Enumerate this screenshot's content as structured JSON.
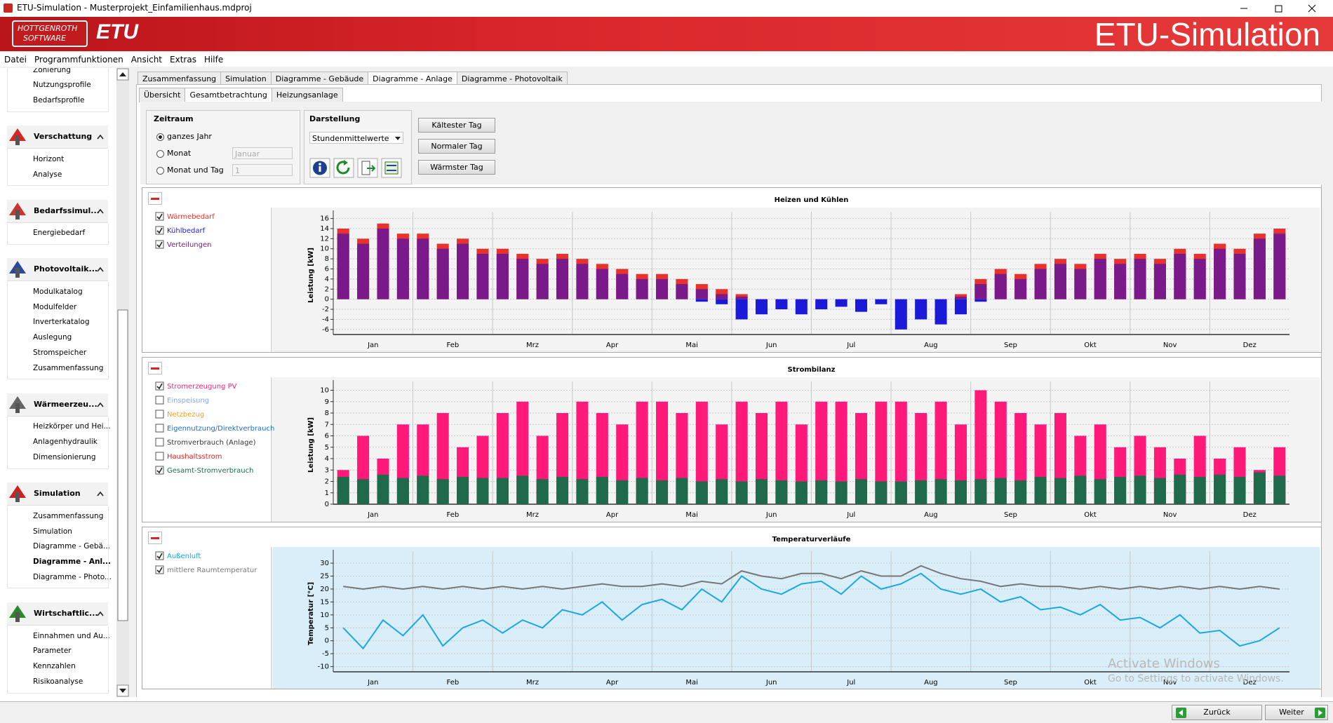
{
  "window": {
    "title": "ETU-Simulation - Musterprojekt_Einfamilienhaus.mdproj"
  },
  "banner": {
    "logo_line1": "HOTTGENROTH",
    "logo_line2": "SOFTWARE",
    "logo_brand": "ETU",
    "app_title": "ETU-Simulation"
  },
  "menu": [
    "Datei",
    "Programmfunktionen",
    "Ansicht",
    "Extras",
    "Hilfe"
  ],
  "sidebar": {
    "sections": [
      {
        "items": [
          "Zonierung",
          "Nutzungsprofile",
          "Bedarfsprofile"
        ]
      },
      {
        "title": "Verschattung",
        "items": [
          "Horizont",
          "Analyse"
        ]
      },
      {
        "title": "Bedarfssimul...",
        "items": [
          "Energiebedarf"
        ]
      },
      {
        "title": "Photovoltaik...",
        "items": [
          "Modulkatalog",
          "Modulfelder",
          "Inverterkatalog",
          "Auslegung",
          "Stromspeicher",
          "Zusammenfassung"
        ]
      },
      {
        "title": "Wärmeerzeu...",
        "items": [
          "Heizkörper und Hei...",
          "Anlagenhydraulik",
          "Dimensionierung"
        ]
      },
      {
        "title": "Simulation",
        "items": [
          "Zusammenfassung",
          "Simulation",
          "Diagramme - Gebä...",
          "Diagramme - Anl...",
          "Diagramme - Photo..."
        ],
        "selected": 3
      },
      {
        "title": "Wirtschaftlic...",
        "items": [
          "Einnahmen und Au...",
          "Parameter",
          "Kennzahlen",
          "Risikoanalyse"
        ]
      }
    ]
  },
  "tabs": {
    "items": [
      "Zusammenfassung",
      "Simulation",
      "Diagramme - Gebäude",
      "Diagramme - Anlage",
      "Diagramme - Photovoltaik"
    ],
    "active": 3
  },
  "subtabs": {
    "items": [
      "Übersicht",
      "Gesamtbetrachtung",
      "Heizungsanlage"
    ],
    "active": 1
  },
  "controls": {
    "zeitraum": {
      "title": "Zeitraum",
      "options": [
        "ganzes Jahr",
        "Monat",
        "Monat und Tag"
      ],
      "selected": 0,
      "month": "Januar",
      "day": 1
    },
    "darstellung": {
      "title": "Darstellung",
      "select": "Stundenmittelwerte"
    },
    "day_buttons": [
      "Kältester Tag",
      "Normaler Tag",
      "Wärmster Tag"
    ]
  },
  "chart_data": [
    {
      "type": "bar",
      "title": "Heizen und Kühlen",
      "y_label": "Leistung [kW]",
      "background": "#f3f3f3",
      "categories": [
        "Jan",
        "Feb",
        "Mrz",
        "Apr",
        "Mai",
        "Jun",
        "Jul",
        "Aug",
        "Sep",
        "Okt",
        "Nov",
        "Dez"
      ],
      "ylim": [
        -7,
        16.5
      ],
      "yticks": [
        -6,
        -4,
        -2,
        0,
        2,
        4,
        6,
        8,
        10,
        12,
        14,
        16
      ],
      "grid": true,
      "series": [
        {
          "name": "Wärmebedarf",
          "color": "#e8322b",
          "checked": true,
          "values": [
            [
              14,
              12,
              15,
              13
            ],
            [
              13,
              11,
              12,
              10
            ],
            [
              10,
              9,
              8,
              9
            ],
            [
              8,
              7,
              6,
              5
            ],
            [
              5,
              4,
              3,
              2
            ],
            [
              1,
              0,
              0,
              0
            ],
            [
              0,
              0,
              0,
              0
            ],
            [
              0,
              0,
              0,
              1
            ],
            [
              4,
              6,
              5,
              7
            ],
            [
              8,
              7,
              9,
              8
            ],
            [
              9,
              8,
              10,
              9
            ],
            [
              11,
              10,
              13,
              14
            ]
          ]
        },
        {
          "name": "Kühlbedarf",
          "color": "#1a1ad8",
          "checked": true,
          "values": [
            [
              0,
              0,
              0,
              0
            ],
            [
              0,
              0,
              0,
              0
            ],
            [
              0,
              0,
              0,
              0
            ],
            [
              0,
              0,
              0,
              0
            ],
            [
              0,
              0,
              -0.5,
              -1
            ],
            [
              -4,
              -3,
              -2,
              -3
            ],
            [
              -2,
              -1.5,
              -2.5,
              -1
            ],
            [
              -6,
              -4,
              -5,
              -3
            ],
            [
              -0.5,
              0,
              0,
              0
            ],
            [
              0,
              0,
              0,
              0
            ],
            [
              0,
              0,
              0,
              0
            ],
            [
              0,
              0,
              0,
              0
            ]
          ]
        },
        {
          "name": "Verteilungen",
          "color": "#7a1a8a",
          "checked": true,
          "values": [
            [
              13,
              11,
              14,
              12
            ],
            [
              12,
              10,
              11,
              9
            ],
            [
              9,
              8,
              7,
              8
            ],
            [
              7,
              6,
              5,
              4
            ],
            [
              4,
              3,
              2,
              1
            ],
            [
              0.5,
              0,
              0,
              0
            ],
            [
              0,
              0,
              0,
              0
            ],
            [
              0,
              0,
              0,
              0.5
            ],
            [
              3,
              5,
              4,
              6
            ],
            [
              7,
              6,
              8,
              7
            ],
            [
              8,
              7,
              9,
              8
            ],
            [
              10,
              9,
              12,
              13
            ]
          ]
        }
      ]
    },
    {
      "type": "bar",
      "title": "Strombilanz",
      "y_label": "Leistung [kW]",
      "background": "#f3f3f3",
      "categories": [
        "Jan",
        "Feb",
        "Mrz",
        "Apr",
        "Mai",
        "Jun",
        "Jul",
        "Aug",
        "Sep",
        "Okt",
        "Nov",
        "Dez"
      ],
      "ylim": [
        0,
        10.4
      ],
      "yticks": [
        0,
        1,
        2,
        3,
        4,
        5,
        6,
        7,
        8,
        9,
        10
      ],
      "grid": true,
      "series": [
        {
          "name": "Stromerzeugung PV",
          "color": "#ff1a7a",
          "checked": true,
          "values": [
            [
              3,
              6,
              4,
              7
            ],
            [
              7,
              8,
              5,
              6
            ],
            [
              8,
              9,
              6,
              8
            ],
            [
              9,
              8,
              7,
              9
            ],
            [
              9,
              8,
              9,
              7
            ],
            [
              9,
              8,
              9,
              7
            ],
            [
              9,
              9,
              8,
              9
            ],
            [
              9,
              8,
              9,
              7
            ],
            [
              10,
              9,
              8,
              7
            ],
            [
              8,
              6,
              7,
              5
            ],
            [
              6,
              5,
              4,
              6
            ],
            [
              4,
              5,
              3,
              5
            ]
          ]
        },
        {
          "name": "Einspeisung",
          "color": "#8aa8e8",
          "checked": false
        },
        {
          "name": "Netzbezug",
          "color": "#f0a020",
          "checked": false
        },
        {
          "name": "Eigennutzung/Direktverbrauch",
          "color": "#1a6ec8",
          "checked": false
        },
        {
          "name": "Stromverbrauch (Anlage)",
          "color": "#333333",
          "checked": false
        },
        {
          "name": "Haushaltsstrom",
          "color": "#e02020",
          "checked": false
        },
        {
          "name": "Gesamt-Stromverbrauch",
          "color": "#1e6a4a",
          "checked": true,
          "values": [
            [
              2.4,
              2.2,
              2.6,
              2.3
            ],
            [
              2.5,
              2.2,
              2.4,
              2.3
            ],
            [
              2.3,
              2.5,
              2.2,
              2.4
            ],
            [
              2.2,
              2.4,
              2.1,
              2.3
            ],
            [
              2.1,
              2.3,
              2.0,
              2.2
            ],
            [
              2.0,
              2.2,
              2.1,
              2.0
            ],
            [
              2.1,
              2.0,
              2.2,
              2.0
            ],
            [
              2.0,
              2.1,
              2.2,
              2.1
            ],
            [
              2.2,
              2.3,
              2.1,
              2.4
            ],
            [
              2.3,
              2.5,
              2.2,
              2.4
            ],
            [
              2.5,
              2.3,
              2.6,
              2.4
            ],
            [
              2.6,
              2.4,
              2.8,
              2.5
            ]
          ]
        }
      ]
    },
    {
      "type": "line",
      "title": "Temperaturverläufe",
      "y_label": "Temperatur [°C]",
      "background": "#d9eef8",
      "categories": [
        "Jan",
        "Feb",
        "Mrz",
        "Apr",
        "Mai",
        "Jun",
        "Jul",
        "Aug",
        "Sep",
        "Okt",
        "Nov",
        "Dez"
      ],
      "ylim": [
        -12,
        33
      ],
      "yticks": [
        -10,
        -5,
        0,
        5,
        10,
        15,
        20,
        25,
        30
      ],
      "grid": true,
      "series": [
        {
          "name": "Außenluft",
          "color": "#1aa8e0",
          "checked": true,
          "values": [
            [
              5,
              -3,
              8,
              2
            ],
            [
              10,
              -2,
              5,
              8
            ],
            [
              3,
              8,
              5,
              12
            ],
            [
              10,
              15,
              8,
              14
            ],
            [
              16,
              12,
              20,
              15
            ],
            [
              25,
              20,
              18,
              22
            ],
            [
              23,
              18,
              25,
              20
            ],
            [
              22,
              26,
              20,
              18
            ],
            [
              20,
              15,
              17,
              12
            ],
            [
              13,
              10,
              14,
              8
            ],
            [
              9,
              5,
              10,
              3
            ],
            [
              4,
              -2,
              0,
              5
            ]
          ]
        },
        {
          "name": "mittlere Raumtemperatur",
          "color": "#777777",
          "checked": true,
          "values": [
            [
              21,
              20,
              21,
              20
            ],
            [
              21,
              20,
              21,
              20
            ],
            [
              21,
              20,
              21,
              20
            ],
            [
              21,
              22,
              21,
              21
            ],
            [
              22,
              21,
              23,
              22
            ],
            [
              27,
              25,
              24,
              26
            ],
            [
              26,
              24,
              27,
              25
            ],
            [
              25,
              29,
              26,
              24
            ],
            [
              23,
              21,
              22,
              21
            ],
            [
              21,
              20,
              21,
              20
            ],
            [
              21,
              20,
              21,
              20
            ],
            [
              21,
              20,
              21,
              20
            ]
          ]
        }
      ]
    }
  ],
  "footer": {
    "back": "Zurück",
    "next": "Weiter"
  },
  "watermark": {
    "line1": "Activate Windows",
    "line2": "Go to Settings to activate Windows."
  }
}
